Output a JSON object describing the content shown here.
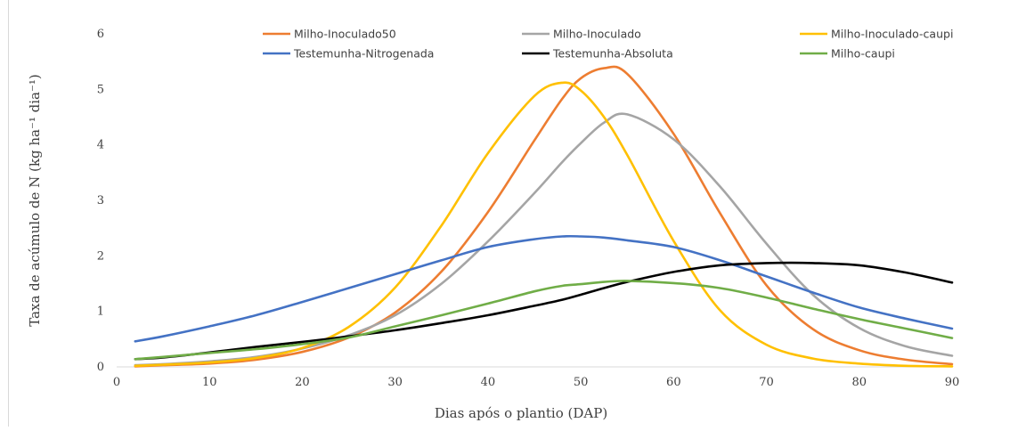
{
  "chart_data": {
    "type": "line",
    "title": "",
    "xlabel": "Dias após o plantio (DAP)",
    "ylabel": "Taxa de acúmulo de N (kg ha⁻¹ dia⁻¹)",
    "xlim": [
      0,
      90
    ],
    "ylim": [
      0,
      6
    ],
    "xticks": [
      "0",
      "10",
      "20",
      "30",
      "40",
      "50",
      "60",
      "70",
      "80",
      "90"
    ],
    "yticks": [
      "0",
      "1",
      "2",
      "3",
      "4",
      "5",
      "6"
    ],
    "grid": false,
    "legend_position": "top",
    "x": [
      2,
      5,
      10,
      15,
      20,
      25,
      30,
      35,
      40,
      45,
      48,
      50,
      52.5,
      55,
      60,
      65,
      70,
      75,
      80,
      85,
      90
    ],
    "series": [
      {
        "name": "Milho-Inoculado50",
        "color": "#ED7D31",
        "values": [
          0.01,
          0.03,
          0.06,
          0.13,
          0.27,
          0.53,
          0.98,
          1.72,
          2.79,
          4.08,
          4.83,
          5.2,
          5.38,
          5.28,
          4.2,
          2.77,
          1.47,
          0.68,
          0.3,
          0.13,
          0.05
        ]
      },
      {
        "name": "Milho-Inoculado",
        "color": "#A5A5A5",
        "values": [
          0.03,
          0.05,
          0.1,
          0.18,
          0.33,
          0.57,
          0.93,
          1.5,
          2.26,
          3.13,
          3.69,
          4.03,
          4.4,
          4.55,
          4.1,
          3.25,
          2.22,
          1.3,
          0.7,
          0.37,
          0.2
        ]
      },
      {
        "name": "Milho-Inoculado-caupi",
        "color": "#FFC000",
        "values": [
          0.02,
          0.04,
          0.08,
          0.16,
          0.34,
          0.72,
          1.43,
          2.55,
          3.85,
          4.88,
          5.12,
          4.98,
          4.5,
          3.82,
          2.27,
          1.02,
          0.4,
          0.15,
          0.06,
          0.02,
          0.01
        ]
      },
      {
        "name": "Testemunha-Nitrogenada",
        "color": "#4472C4",
        "values": [
          0.46,
          0.55,
          0.73,
          0.93,
          1.17,
          1.42,
          1.67,
          1.92,
          2.16,
          2.3,
          2.35,
          2.35,
          2.33,
          2.28,
          2.16,
          1.92,
          1.63,
          1.34,
          1.07,
          0.87,
          0.69
        ]
      },
      {
        "name": "Testemunha-Absoluta",
        "color": "#000000",
        "values": [
          0.14,
          0.17,
          0.26,
          0.36,
          0.45,
          0.55,
          0.66,
          0.79,
          0.93,
          1.1,
          1.21,
          1.3,
          1.42,
          1.53,
          1.71,
          1.83,
          1.87,
          1.87,
          1.83,
          1.7,
          1.52
        ]
      },
      {
        "name": "Milho-caupi",
        "color": "#70AD47",
        "values": [
          0.14,
          0.18,
          0.25,
          0.32,
          0.41,
          0.53,
          0.73,
          0.93,
          1.14,
          1.36,
          1.46,
          1.49,
          1.53,
          1.55,
          1.51,
          1.42,
          1.25,
          1.05,
          0.86,
          0.69,
          0.52
        ]
      }
    ]
  }
}
